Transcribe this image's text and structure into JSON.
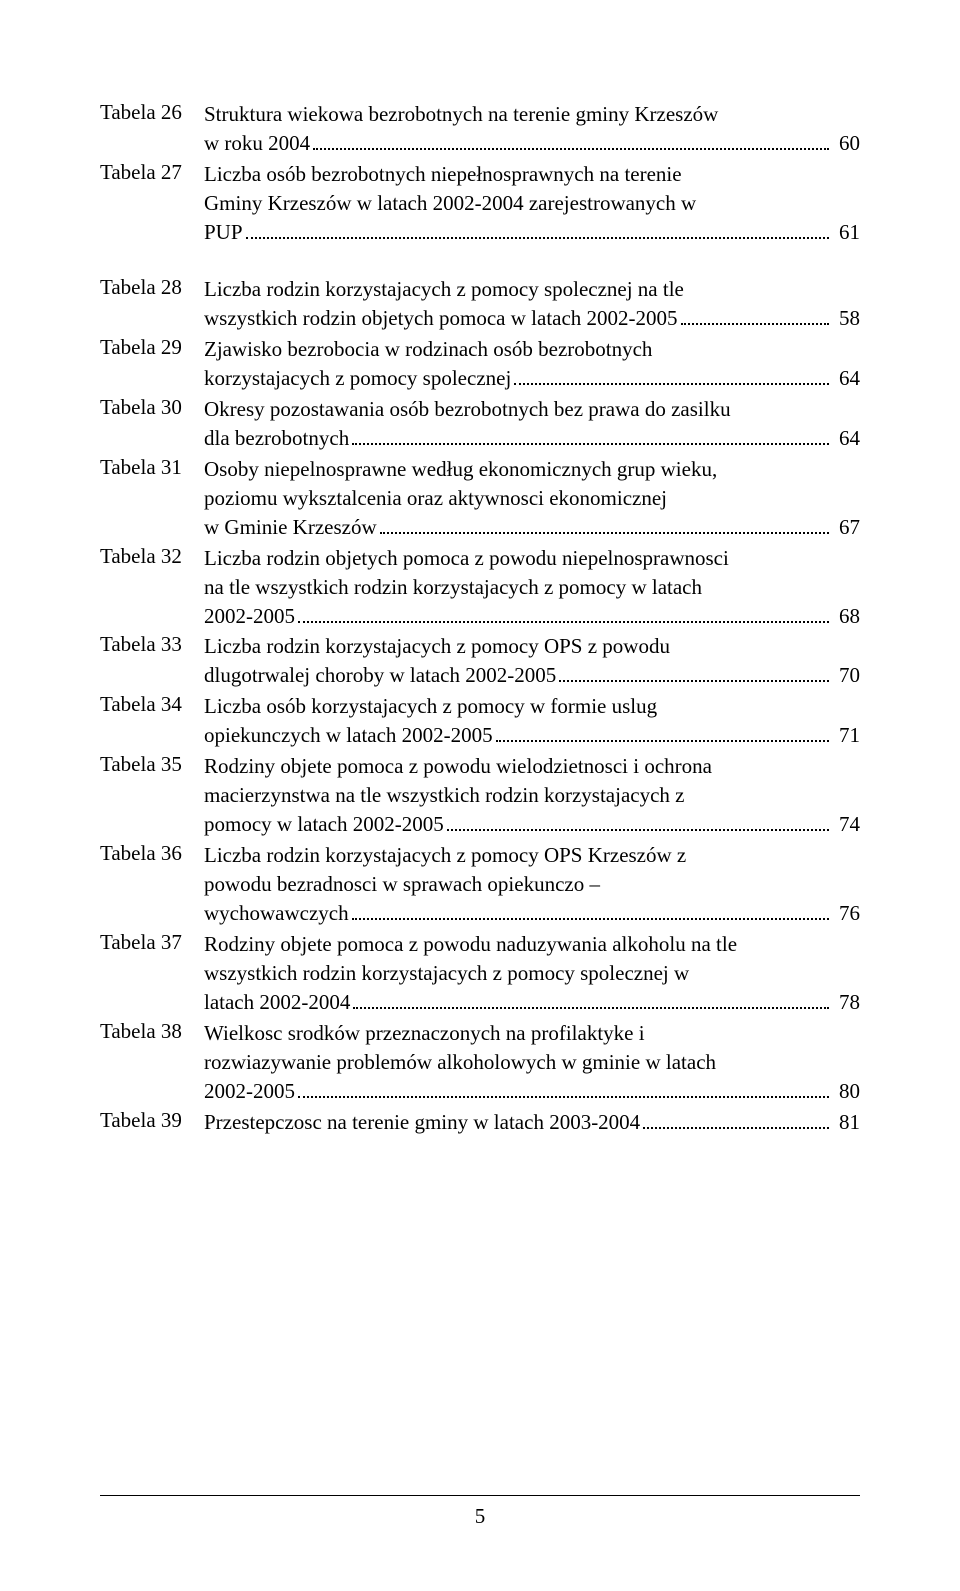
{
  "entries": [
    {
      "label": "Tabela 26",
      "lines": [
        {
          "text": "Struktura wiekowa bezrobotnych na terenie gminy Krzeszów",
          "page": ""
        },
        {
          "text": "w roku 2004",
          "page": "60"
        }
      ],
      "spacer": false
    },
    {
      "label": "Tabela 27",
      "lines": [
        {
          "text": "Liczba osób bezrobotnych niepełnosprawnych na terenie",
          "page": ""
        },
        {
          "text": "Gminy Krzeszów w latach 2002-2004 zarejestrowanych w",
          "page": ""
        },
        {
          "text": "PUP",
          "page": "61"
        }
      ],
      "spacer": true
    },
    {
      "label": "Tabela 28",
      "lines": [
        {
          "text": "Liczba rodzin korzystajacych z pomocy spolecznej na tle",
          "page": ""
        },
        {
          "text": "wszystkich rodzin objetych pomoca w latach 2002-2005",
          "page": "58"
        }
      ],
      "spacer": false
    },
    {
      "label": "Tabela 29",
      "lines": [
        {
          "text": "Zjawisko bezrobocia w rodzinach osób bezrobotnych",
          "page": ""
        },
        {
          "text": "korzystajacych z pomocy spolecznej",
          "page": "64"
        }
      ],
      "spacer": false
    },
    {
      "label": "Tabela 30",
      "lines": [
        {
          "text": "Okresy pozostawania osób bezrobotnych bez prawa do zasilku",
          "page": ""
        },
        {
          "text": "dla bezrobotnych",
          "page": "64"
        }
      ],
      "spacer": false
    },
    {
      "label": "Tabela 31",
      "lines": [
        {
          "text": "Osoby niepelnosprawne według ekonomicznych grup wieku,",
          "page": ""
        },
        {
          "text": "poziomu wyksztalcenia oraz aktywnosci ekonomicznej",
          "page": ""
        },
        {
          "text": "w Gminie Krzeszów",
          "page": "67"
        }
      ],
      "spacer": false
    },
    {
      "label": "Tabela 32",
      "lines": [
        {
          "text": "Liczba rodzin objetych pomoca z powodu niepelnosprawnosci",
          "page": ""
        },
        {
          "text": "na tle wszystkich rodzin korzystajacych z pomocy w latach",
          "page": ""
        },
        {
          "text": "2002-2005",
          "page": "68"
        }
      ],
      "spacer": false
    },
    {
      "label": "Tabela 33",
      "lines": [
        {
          "text": "Liczba rodzin korzystajacych z pomocy OPS z powodu",
          "page": ""
        },
        {
          "text": "dlugotrwalej choroby w latach 2002-2005",
          "page": "70"
        }
      ],
      "spacer": false
    },
    {
      "label": "Tabela 34",
      "lines": [
        {
          "text": "Liczba osób korzystajacych z pomocy w formie uslug",
          "page": ""
        },
        {
          "text": "opiekunczych w latach 2002-2005",
          "page": "71"
        }
      ],
      "spacer": false
    },
    {
      "label": "Tabela 35",
      "lines": [
        {
          "text": "Rodziny objete pomoca z powodu wielodzietnosci i ochrona",
          "page": ""
        },
        {
          "text": "macierzynstwa na tle wszystkich rodzin korzystajacych z",
          "page": ""
        },
        {
          "text": "pomocy w latach 2002-2005",
          "page": "74"
        }
      ],
      "spacer": false
    },
    {
      "label": "Tabela 36",
      "lines": [
        {
          "text": "Liczba rodzin korzystajacych z pomocy OPS Krzeszów z",
          "page": ""
        },
        {
          "text": "powodu bezradnosci w sprawach opiekunczo –",
          "page": ""
        },
        {
          "text": "wychowawczych",
          "page": "76"
        }
      ],
      "spacer": false
    },
    {
      "label": "Tabela 37",
      "lines": [
        {
          "text": "Rodziny objete pomoca z powodu naduzywania alkoholu na tle",
          "page": ""
        },
        {
          "text": "wszystkich rodzin korzystajacych z pomocy spolecznej w",
          "page": ""
        },
        {
          "text": "latach 2002-2004",
          "page": "78"
        }
      ],
      "spacer": false
    },
    {
      "label": "Tabela 38",
      "lines": [
        {
          "text": "Wielkosc srodków przeznaczonych na profilaktyke i",
          "page": ""
        },
        {
          "text": "rozwiazywanie problemów alkoholowych w gminie w latach",
          "page": ""
        },
        {
          "text": "2002-2005",
          "page": "80"
        }
      ],
      "spacer": false
    },
    {
      "label": "Tabela 39",
      "lines": [
        {
          "text": "Przestepczosc na terenie gminy w latach 2003-2004",
          "page": "81"
        }
      ],
      "spacer": false
    }
  ],
  "page_number": "5",
  "colors": {
    "background": "#ffffff",
    "text": "#000000",
    "dots": "#000000",
    "footer_line": "#000000"
  },
  "typography": {
    "font_family": "Times New Roman",
    "font_size_pt": 16
  }
}
